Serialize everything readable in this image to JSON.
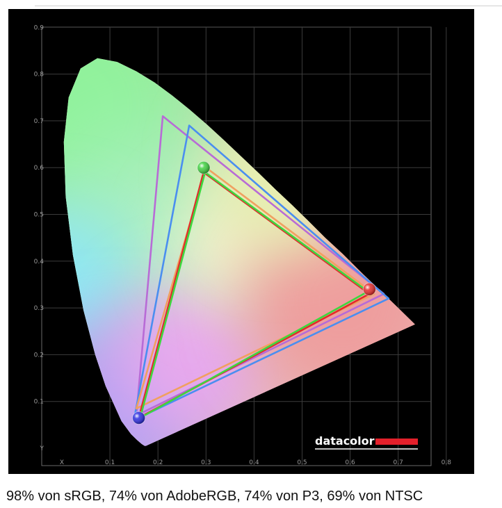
{
  "caption": "98% von sRGB, 74% von AdobeRGB, 74% von P3, 69% von NTSC",
  "brand": {
    "text": "datacolor",
    "bar_color": "#e3202b"
  },
  "chart_data": {
    "type": "scatter",
    "title": "",
    "xlabel": "X",
    "ylabel": "Y",
    "xlim": [
      0.0,
      0.8
    ],
    "ylim": [
      0.0,
      0.9
    ],
    "grid": true,
    "x_ticks": [
      {
        "value": 0.0,
        "label": "X"
      },
      {
        "value": 0.1,
        "label": "0.1"
      },
      {
        "value": 0.2,
        "label": "0.2"
      },
      {
        "value": 0.3,
        "label": "0.3"
      },
      {
        "value": 0.4,
        "label": "0.4"
      },
      {
        "value": 0.5,
        "label": "0.5"
      },
      {
        "value": 0.6,
        "label": "0.6"
      },
      {
        "value": 0.7,
        "label": "0.7"
      },
      {
        "value": 0.8,
        "label": "0.8"
      }
    ],
    "y_ticks": [
      {
        "value": 0.0,
        "label": "Y"
      },
      {
        "value": 0.1,
        "label": "0.1"
      },
      {
        "value": 0.2,
        "label": "0.2"
      },
      {
        "value": 0.3,
        "label": "0.3"
      },
      {
        "value": 0.4,
        "label": "0.4"
      },
      {
        "value": 0.5,
        "label": "0.5"
      },
      {
        "value": 0.6,
        "label": "0.6"
      },
      {
        "value": 0.7,
        "label": "0.7"
      },
      {
        "value": 0.8,
        "label": "0.8"
      },
      {
        "value": 0.9,
        "label": "0.9"
      }
    ],
    "locus": [
      [
        0.175,
        0.005
      ],
      [
        0.172,
        0.005
      ],
      [
        0.166,
        0.009
      ],
      [
        0.156,
        0.018
      ],
      [
        0.144,
        0.03
      ],
      [
        0.124,
        0.058
      ],
      [
        0.091,
        0.133
      ],
      [
        0.069,
        0.201
      ],
      [
        0.045,
        0.295
      ],
      [
        0.023,
        0.413
      ],
      [
        0.008,
        0.538
      ],
      [
        0.004,
        0.655
      ],
      [
        0.014,
        0.75
      ],
      [
        0.039,
        0.812
      ],
      [
        0.074,
        0.834
      ],
      [
        0.115,
        0.826
      ],
      [
        0.155,
        0.806
      ],
      [
        0.193,
        0.782
      ],
      [
        0.23,
        0.754
      ],
      [
        0.266,
        0.724
      ],
      [
        0.302,
        0.692
      ],
      [
        0.337,
        0.659
      ],
      [
        0.373,
        0.624
      ],
      [
        0.409,
        0.589
      ],
      [
        0.444,
        0.554
      ],
      [
        0.479,
        0.52
      ],
      [
        0.512,
        0.487
      ],
      [
        0.548,
        0.45
      ],
      [
        0.584,
        0.416
      ],
      [
        0.627,
        0.372
      ],
      [
        0.666,
        0.334
      ],
      [
        0.701,
        0.299
      ],
      [
        0.735,
        0.265
      ]
    ],
    "series": [
      {
        "color": "#b86bd6",
        "points": [
          [
            0.155,
            0.07
          ],
          [
            0.21,
            0.71
          ],
          [
            0.67,
            0.33
          ]
        ]
      },
      {
        "color": "#4a8ef0",
        "points": [
          [
            0.15,
            0.06
          ],
          [
            0.265,
            0.69
          ],
          [
            0.68,
            0.32
          ]
        ]
      },
      {
        "color": "#f0a060",
        "points": [
          [
            0.155,
            0.085
          ],
          [
            0.3,
            0.6
          ],
          [
            0.65,
            0.33
          ]
        ]
      },
      {
        "color": "#e22b2b",
        "points": [
          [
            0.16,
            0.065
          ],
          [
            0.295,
            0.59
          ],
          [
            0.64,
            0.33
          ]
        ]
      },
      {
        "color": "#3ed73e",
        "points": [
          [
            0.163,
            0.065
          ],
          [
            0.298,
            0.59
          ],
          [
            0.637,
            0.335
          ]
        ]
      }
    ],
    "markers": [
      {
        "x": 0.295,
        "y": 0.6,
        "color": "#3fd13f"
      },
      {
        "x": 0.64,
        "y": 0.34,
        "color": "#e52a2a"
      },
      {
        "x": 0.16,
        "y": 0.065,
        "color": "#2b2be0"
      }
    ]
  }
}
